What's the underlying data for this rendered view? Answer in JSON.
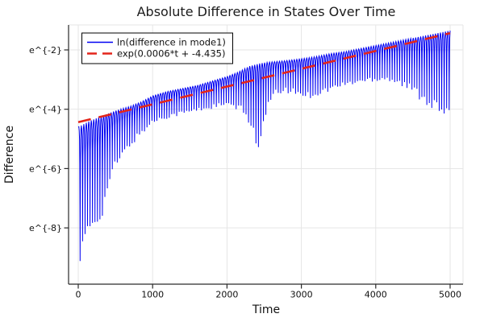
{
  "chart_data": {
    "type": "line",
    "title": "Absolute Difference in States Over Time",
    "xlabel": "Time",
    "ylabel": "Difference",
    "x_ticks": [
      0,
      1000,
      2000,
      3000,
      4000,
      5000
    ],
    "y_ticks": [
      {
        "value": -2,
        "label": "e^{-2}"
      },
      {
        "value": -4,
        "label": "e^{-4}"
      },
      {
        "value": -6,
        "label": "e^{-6}"
      },
      {
        "value": -8,
        "label": "e^{-8}"
      }
    ],
    "x_range": [
      -130,
      5175
    ],
    "y_range_ln": [
      -9.9,
      -1.16
    ],
    "grid": true,
    "legend_position": "top-left",
    "series": [
      {
        "name": "ln(difference in mode1)",
        "color": "#0000f2",
        "style": "solid",
        "kind": "oscillatory-band",
        "oscillation": {
          "spike_interval": 33.3,
          "first_spike_t": 25,
          "t_start": 0,
          "t_end": 5000
        },
        "upper_envelope_ln": [
          [
            0,
            -4.6
          ],
          [
            150,
            -4.4
          ],
          [
            300,
            -4.25
          ],
          [
            500,
            -4.05
          ],
          [
            700,
            -3.9
          ],
          [
            850,
            -3.75
          ],
          [
            1000,
            -3.55
          ],
          [
            1200,
            -3.4
          ],
          [
            1400,
            -3.3
          ],
          [
            1600,
            -3.2
          ],
          [
            1800,
            -3.05
          ],
          [
            2000,
            -2.9
          ],
          [
            2150,
            -2.75
          ],
          [
            2300,
            -2.55
          ],
          [
            2450,
            -2.45
          ],
          [
            2600,
            -2.4
          ],
          [
            2750,
            -2.37
          ],
          [
            2900,
            -2.33
          ],
          [
            3050,
            -2.28
          ],
          [
            3200,
            -2.22
          ],
          [
            3400,
            -2.12
          ],
          [
            3600,
            -2.05
          ],
          [
            3800,
            -1.95
          ],
          [
            4000,
            -1.85
          ],
          [
            4200,
            -1.75
          ],
          [
            4400,
            -1.65
          ],
          [
            4600,
            -1.55
          ],
          [
            4800,
            -1.45
          ],
          [
            5000,
            -1.35
          ]
        ],
        "lower_envelope_ln": [
          [
            0,
            -9.7
          ],
          [
            40,
            -9.0
          ],
          [
            80,
            -8.6
          ],
          [
            150,
            -8.2
          ],
          [
            250,
            -7.9
          ],
          [
            300,
            -7.8
          ],
          [
            350,
            -7.4
          ],
          [
            400,
            -6.7
          ],
          [
            500,
            -6.05
          ],
          [
            600,
            -5.65
          ],
          [
            700,
            -5.3
          ],
          [
            800,
            -5.0
          ],
          [
            900,
            -4.75
          ],
          [
            1000,
            -4.5
          ],
          [
            1150,
            -4.35
          ],
          [
            1300,
            -4.25
          ],
          [
            1500,
            -4.15
          ],
          [
            1700,
            -4.05
          ],
          [
            1900,
            -3.95
          ],
          [
            2050,
            -3.95
          ],
          [
            2200,
            -4.15
          ],
          [
            2300,
            -4.5
          ],
          [
            2380,
            -5.1
          ],
          [
            2435,
            -5.65
          ],
          [
            2490,
            -4.7
          ],
          [
            2550,
            -4.0
          ],
          [
            2650,
            -3.55
          ],
          [
            2800,
            -3.45
          ],
          [
            2950,
            -3.55
          ],
          [
            3100,
            -3.65
          ],
          [
            3250,
            -3.55
          ],
          [
            3400,
            -3.4
          ],
          [
            3600,
            -3.25
          ],
          [
            3800,
            -3.15
          ],
          [
            4000,
            -3.07
          ],
          [
            4150,
            -3.05
          ],
          [
            4300,
            -3.2
          ],
          [
            4500,
            -3.5
          ],
          [
            4700,
            -3.9
          ],
          [
            4850,
            -4.2
          ],
          [
            5000,
            -4.5
          ]
        ]
      },
      {
        "name": "exp(0.0006*t + -4.435)",
        "color": "#e3251b",
        "style": "dash",
        "kind": "exponential-trend",
        "slope": 0.0006,
        "intercept": -4.435,
        "t_start": 0,
        "t_end": 5000
      }
    ]
  },
  "style": {
    "series1_color": "#0000f2",
    "series2_color": "#e3251b",
    "grid_color": "#e3e3e3",
    "frame_color": "#e6e6e6",
    "axis_color": "#2a2a2a",
    "background": "#ffffff"
  }
}
